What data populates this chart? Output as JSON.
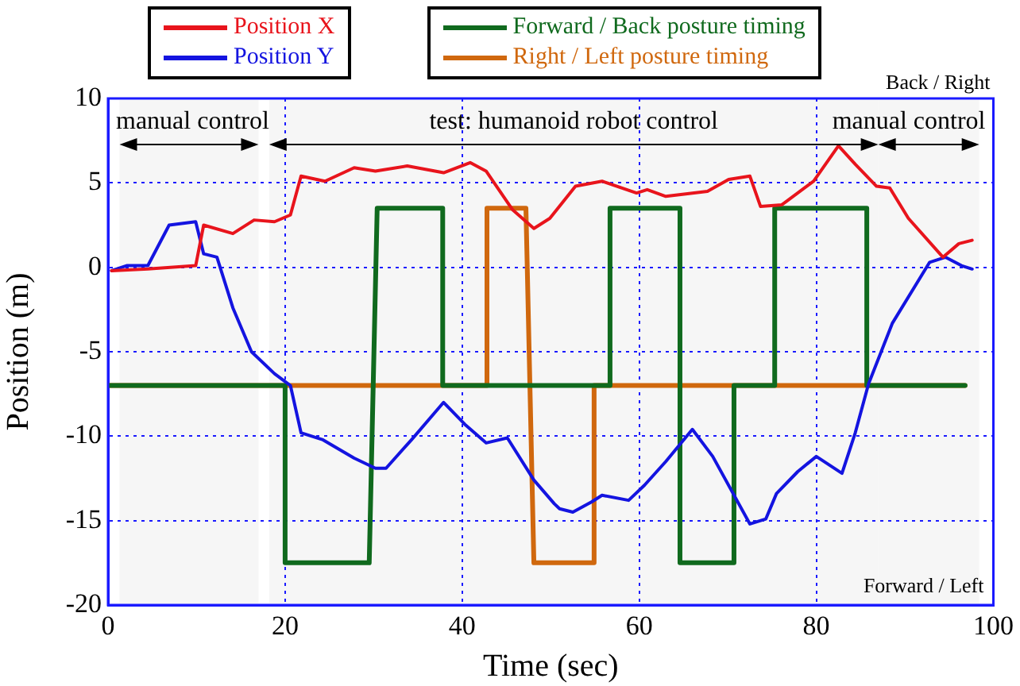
{
  "chart_data": {
    "type": "line",
    "xlabel": "Time (sec)",
    "ylabel": "Position (m)",
    "xlim": [
      0,
      100
    ],
    "xticks": [
      0,
      20,
      40,
      60,
      80,
      100
    ],
    "ylim": [
      -20,
      10
    ],
    "yticks": [
      -20,
      -15,
      -10,
      -5,
      0,
      5,
      10
    ],
    "grid": true,
    "legend": "top",
    "marker": "none",
    "line_style": "solid",
    "annotations": [
      "Back / Right",
      "Forward / Left"
    ],
    "bands": [
      {
        "axis": "x",
        "from": 1.3,
        "to": 17,
        "label": "manual control",
        "color": "#f6f6f6"
      },
      {
        "axis": "x",
        "from": 18.2,
        "to": 87,
        "label": "test: humanoid robot control",
        "color": "#f6f6f6"
      },
      {
        "axis": "x",
        "from": 87,
        "to": 98.4,
        "label": "manual control",
        "color": "#f6f6f6"
      }
    ],
    "series": [
      {
        "name": "Position X",
        "color": "#e8141c",
        "x": [
          0.4,
          4.5,
          9.9,
          10.8,
          14.1,
          16.5,
          18.8,
          20.6,
          21.8,
          24.5,
          27.8,
          30.2,
          33.8,
          37.9,
          40.9,
          42.7,
          45.7,
          48.1,
          49.9,
          52.8,
          55.8,
          59.7,
          60.9,
          63.0,
          67.7,
          70.1,
          72.5,
          73.7,
          76.1,
          79.7,
          82.5,
          84.4,
          86.8,
          88.3,
          90.4,
          94.3,
          96.1,
          97.6
        ],
        "values": [
          -0.2,
          -0.1,
          0.1,
          2.5,
          2.0,
          2.8,
          2.7,
          3.1,
          5.4,
          5.1,
          5.9,
          5.7,
          6.0,
          5.6,
          6.2,
          5.7,
          3.4,
          2.3,
          2.9,
          4.8,
          5.1,
          4.4,
          4.6,
          4.2,
          4.5,
          5.2,
          5.4,
          3.6,
          3.7,
          5.1,
          7.2,
          6.1,
          4.8,
          4.7,
          2.9,
          0.6,
          1.4,
          1.6
        ]
      },
      {
        "name": "Position Y",
        "color": "#1414e0",
        "x": [
          0.4,
          2.1,
          4.5,
          6.9,
          9.9,
          10.8,
          12.3,
          14.1,
          16.2,
          18.8,
          20.6,
          21.8,
          24.2,
          27.8,
          30.2,
          31.4,
          34.3,
          37.9,
          40.3,
          42.7,
          45.1,
          48.1,
          50.4,
          51.0,
          52.5,
          54.6,
          55.8,
          58.8,
          60.6,
          63.0,
          66.0,
          68.3,
          72.5,
          74.3,
          75.5,
          77.9,
          80.0,
          82.9,
          84.4,
          85.9,
          88.6,
          92.8,
          94.6,
          96.4,
          97.6
        ],
        "values": [
          -0.2,
          0.1,
          0.1,
          2.5,
          2.7,
          0.8,
          0.6,
          -2.4,
          -5.0,
          -6.3,
          -7.0,
          -9.8,
          -10.2,
          -11.3,
          -11.9,
          -11.9,
          -10.2,
          -8.0,
          -9.3,
          -10.4,
          -10.1,
          -12.6,
          -14.0,
          -14.3,
          -14.5,
          -13.9,
          -13.5,
          -13.8,
          -12.9,
          -11.5,
          -9.6,
          -11.2,
          -15.2,
          -14.9,
          -13.4,
          -12.1,
          -11.2,
          -12.2,
          -9.8,
          -6.9,
          -3.3,
          0.3,
          0.6,
          0.1,
          -0.1
        ]
      },
      {
        "name": "Forward / Back posture timing",
        "color": "#106a1e",
        "x": [
          0,
          20,
          20,
          29.5,
          30.4,
          37.8,
          37.8,
          56.7,
          56.7,
          64.6,
          64.6,
          70.7,
          70.7,
          75.3,
          75.3,
          85.7,
          85.7,
          96.8
        ],
        "values": [
          -7,
          -7,
          -17.5,
          -17.5,
          3.5,
          3.5,
          -7,
          -7,
          3.5,
          3.5,
          -17.5,
          -17.5,
          -7,
          -7,
          3.5,
          3.5,
          -7,
          -7
        ]
      },
      {
        "name": "Right / Left posture timing",
        "color": "#d0680e",
        "x": [
          0,
          42.8,
          42.8,
          47.2,
          48.1,
          54.9,
          54.9,
          96.8
        ],
        "values": [
          -7,
          -7,
          3.5,
          3.5,
          -17.5,
          -17.5,
          -7,
          -7
        ]
      }
    ]
  }
}
